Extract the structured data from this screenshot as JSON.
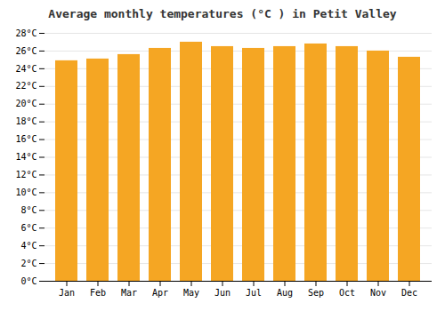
{
  "chart_data": {
    "type": "bar",
    "title": "Average monthly temperatures (°C ) in Petit Valley",
    "categories": [
      "Jan",
      "Feb",
      "Mar",
      "Apr",
      "May",
      "Jun",
      "Jul",
      "Aug",
      "Sep",
      "Oct",
      "Nov",
      "Dec"
    ],
    "values": [
      24.9,
      25.1,
      25.6,
      26.3,
      27.0,
      26.5,
      26.3,
      26.5,
      26.8,
      26.5,
      26.0,
      25.3
    ],
    "color": "#F5A623",
    "ylim": [
      0,
      28
    ],
    "yticks": [
      {
        "value": 0,
        "label": "0°C"
      },
      {
        "value": 2,
        "label": "2°C"
      },
      {
        "value": 4,
        "label": "4°C"
      },
      {
        "value": 6,
        "label": "6°C"
      },
      {
        "value": 8,
        "label": "8°C"
      },
      {
        "value": 10,
        "label": "10°C"
      },
      {
        "value": 12,
        "label": "12°C"
      },
      {
        "value": 14,
        "label": "14°C"
      },
      {
        "value": 16,
        "label": "16°C"
      },
      {
        "value": 18,
        "label": "18°C"
      },
      {
        "value": 20,
        "label": "20°C"
      },
      {
        "value": 22,
        "label": "22°C"
      },
      {
        "value": 24,
        "label": "24°C"
      },
      {
        "value": 26,
        "label": "26°C"
      },
      {
        "value": 28,
        "label": "28°C"
      }
    ],
    "grid": true
  }
}
